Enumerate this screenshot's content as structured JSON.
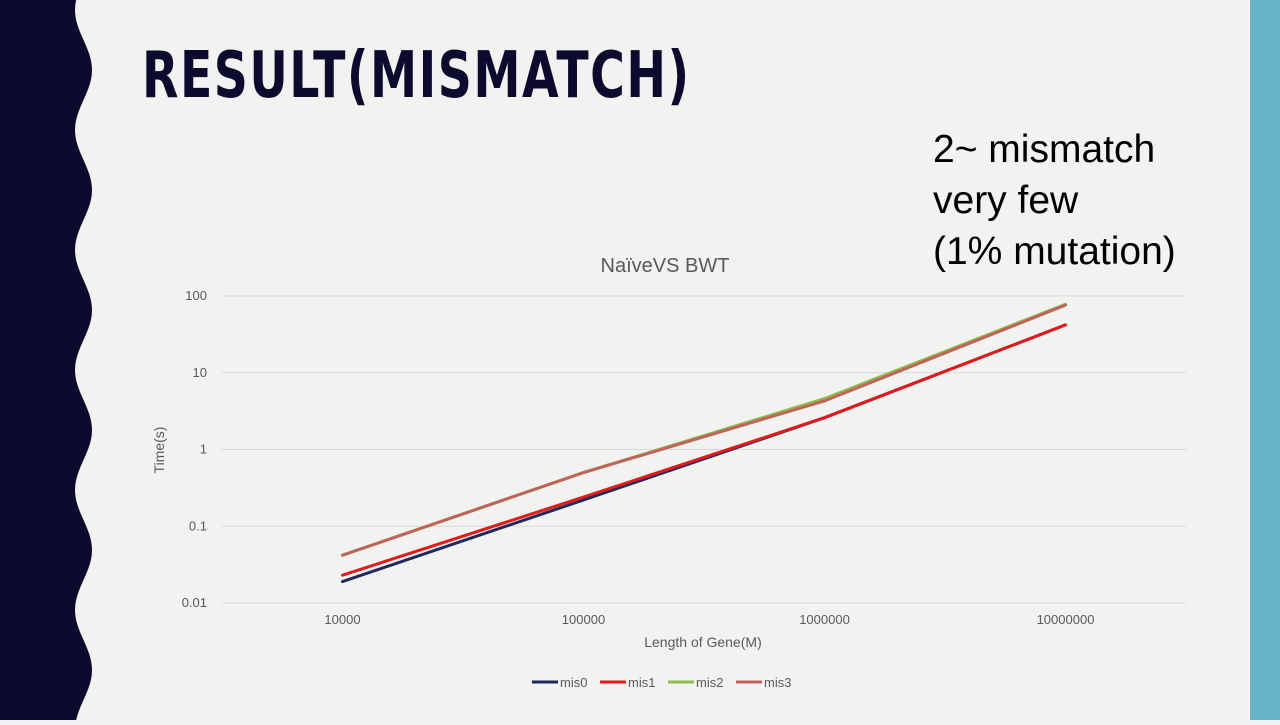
{
  "slide": {
    "title": "RESULT(MISMATCH)",
    "note_lines": [
      "2~ mismatch",
      "very few",
      "(1% mutation)"
    ]
  },
  "colors": {
    "background": "#f2f2f0",
    "left_band": "#0c0b2e",
    "right_band": "#67b3c5",
    "grid": "#d9d9d9",
    "text": "#595959"
  },
  "chart_data": {
    "type": "line",
    "title": "NaïveVS BWT",
    "xlabel": "Length of Gene(M)",
    "ylabel": "Time(s)",
    "y_scale": "log",
    "ylim": [
      0.01,
      100
    ],
    "y_ticks": [
      "0.01",
      "0.1",
      "1",
      "10",
      "100"
    ],
    "categories": [
      "10000",
      "100000",
      "1000000",
      "10000000"
    ],
    "grid": true,
    "legend_position": "bottom",
    "series": [
      {
        "name": "mis0",
        "color": "#1f2a5c",
        "values": [
          0.019,
          0.22,
          2.6,
          42
        ]
      },
      {
        "name": "mis1",
        "color": "#e01b1b",
        "values": [
          0.023,
          0.24,
          2.6,
          42
        ]
      },
      {
        "name": "mis2",
        "color": "#8fbc4f",
        "values": [
          0.042,
          0.5,
          4.6,
          78
        ]
      },
      {
        "name": "mis3",
        "color": "#c0645a",
        "values": [
          0.042,
          0.5,
          4.3,
          76
        ]
      }
    ]
  }
}
